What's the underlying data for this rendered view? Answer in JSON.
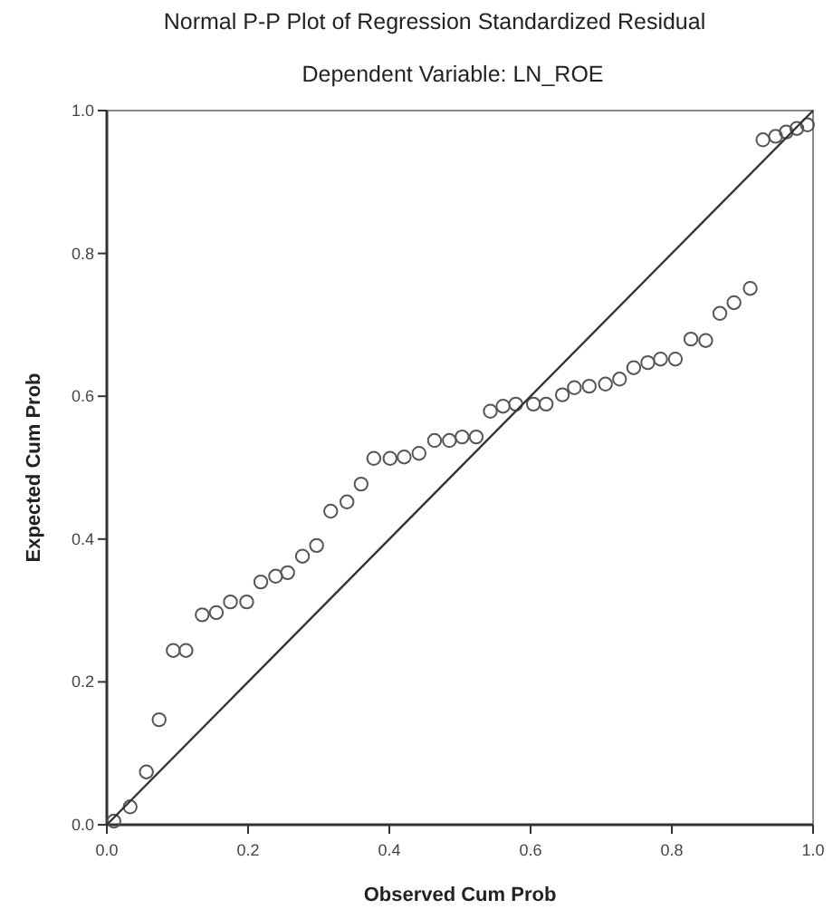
{
  "chart_data": {
    "type": "scatter",
    "title": "Normal P-P Plot of Regression Standardized Residual",
    "subtitle": "Dependent Variable: LN_ROE",
    "xlabel": "Observed Cum Prob",
    "ylabel": "Expected Cum Prob",
    "xlim": [
      0,
      1
    ],
    "ylim": [
      0,
      1
    ],
    "xticks": [
      {
        "value": 0,
        "label": "0.0"
      },
      0.2,
      0.4,
      0.6,
      0.8,
      {
        "value": 1,
        "label": "1.0"
      }
    ],
    "yticks": [
      {
        "value": 0,
        "label": "0.0"
      },
      0.2,
      0.4,
      0.6,
      0.8,
      {
        "value": 1,
        "label": "1.0"
      }
    ],
    "grid": false,
    "marker": "circle",
    "series": [
      {
        "color": "#555555",
        "x": [
          0.01,
          0.033,
          0.056,
          0.074,
          0.094,
          0.112,
          0.135,
          0.155,
          0.175,
          0.198,
          0.218,
          0.239,
          0.256,
          0.277,
          0.297,
          0.317,
          0.34,
          0.36,
          0.378,
          0.401,
          0.421,
          0.442,
          0.464,
          0.485,
          0.503,
          0.523,
          0.543,
          0.561,
          0.579,
          0.604,
          0.622,
          0.645,
          0.662,
          0.683,
          0.706,
          0.726,
          0.746,
          0.766,
          0.784,
          0.805,
          0.827,
          0.848,
          0.868,
          0.888,
          0.911,
          0.929,
          0.947,
          0.962,
          0.977,
          0.992
        ],
        "values": [
          0.005,
          0.025,
          0.074,
          0.147,
          0.244,
          0.244,
          0.294,
          0.297,
          0.312,
          0.312,
          0.34,
          0.348,
          0.353,
          0.376,
          0.391,
          0.439,
          0.452,
          0.477,
          0.513,
          0.513,
          0.515,
          0.52,
          0.538,
          0.538,
          0.543,
          0.543,
          0.579,
          0.586,
          0.589,
          0.589,
          0.589,
          0.602,
          0.612,
          0.614,
          0.617,
          0.624,
          0.64,
          0.647,
          0.652,
          0.652,
          0.68,
          0.678,
          0.716,
          0.731,
          0.751,
          0.959,
          0.964,
          0.97,
          0.975,
          0.98
        ]
      },
      {
        "type": "line",
        "color": "#333333",
        "marker": "none",
        "line_style": "solid",
        "x": [
          0,
          1
        ],
        "values": [
          0,
          1
        ]
      }
    ]
  }
}
